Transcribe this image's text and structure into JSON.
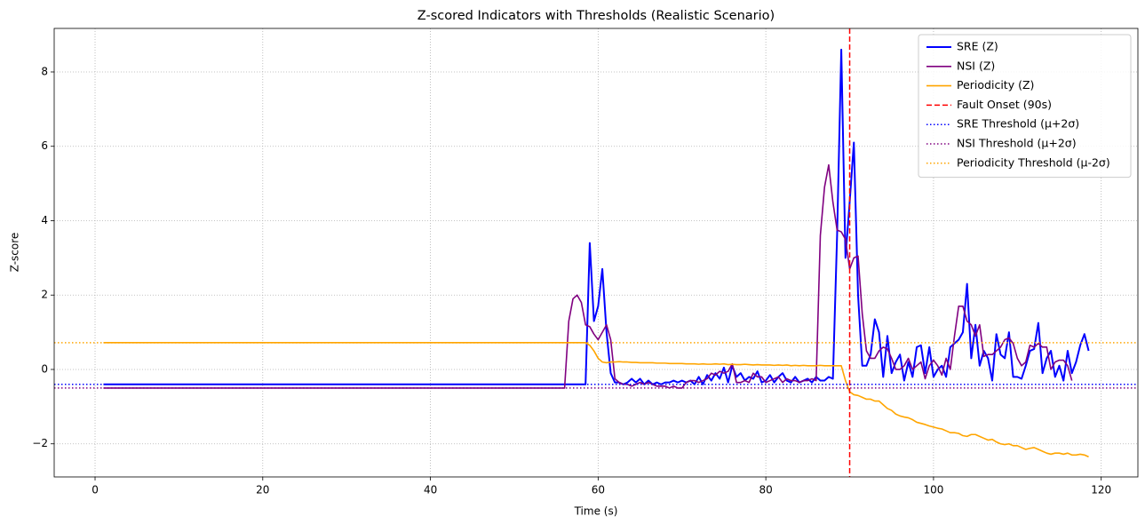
{
  "chart_data": {
    "type": "line",
    "title": "Z-scored Indicators with Thresholds (Realistic Scenario)",
    "x_label": "Time (s)",
    "y_label": "Z-score",
    "x": [
      1,
      56,
      56.5,
      57,
      57.5,
      58,
      58.5,
      59,
      59.5,
      60,
      60.5,
      61,
      61.5,
      62,
      62.5,
      63,
      63.5,
      64,
      64.5,
      65,
      65.5,
      66,
      66.5,
      67,
      67.5,
      68,
      68.5,
      69,
      69.5,
      70,
      70.5,
      71,
      71.5,
      72,
      72.5,
      73,
      73.5,
      74,
      74.5,
      75,
      75.5,
      76,
      76.5,
      77,
      77.5,
      78,
      78.5,
      79,
      79.5,
      80,
      80.5,
      81,
      81.5,
      82,
      82.5,
      83,
      83.5,
      84,
      84.5,
      85,
      85.5,
      86,
      86.5,
      87,
      87.5,
      88,
      88.5,
      89,
      89.5,
      90,
      90.5,
      91,
      91.5,
      92,
      92.5,
      93,
      93.5,
      94,
      94.5,
      95,
      95.5,
      96,
      96.5,
      97,
      97.5,
      98,
      98.5,
      99,
      99.5,
      100,
      100.5,
      101,
      101.5,
      102,
      102.5,
      103,
      103.5,
      104,
      104.5,
      105,
      105.5,
      106,
      106.5,
      107,
      107.5,
      108,
      108.5,
      109,
      109.5,
      110,
      110.5,
      111,
      111.5,
      112,
      112.5,
      113,
      113.5,
      114,
      114.5,
      115,
      115.5,
      116,
      116.5,
      117,
      117.5,
      118,
      118.5
    ],
    "series": [
      {
        "name": "SRE (Z)",
        "color": "#0000ff",
        "width": 2,
        "values": [
          -0.4,
          -0.4,
          -0.4,
          -0.4,
          -0.4,
          -0.4,
          -0.4,
          3.4,
          1.3,
          1.7,
          2.7,
          1.0,
          -0.1,
          -0.35,
          -0.35,
          -0.4,
          -0.35,
          -0.25,
          -0.35,
          -0.25,
          -0.4,
          -0.3,
          -0.4,
          -0.35,
          -0.4,
          -0.35,
          -0.35,
          -0.3,
          -0.35,
          -0.3,
          -0.35,
          -0.3,
          -0.4,
          -0.2,
          -0.4,
          -0.15,
          -0.3,
          -0.1,
          -0.25,
          0.05,
          -0.35,
          0.1,
          -0.2,
          -0.1,
          -0.3,
          -0.2,
          -0.25,
          -0.05,
          -0.35,
          -0.3,
          -0.15,
          -0.35,
          -0.2,
          -0.1,
          -0.3,
          -0.35,
          -0.2,
          -0.35,
          -0.3,
          -0.25,
          -0.35,
          -0.2,
          -0.3,
          -0.3,
          -0.2,
          -0.25,
          3.6,
          8.6,
          3.0,
          4.5,
          6.1,
          2.0,
          0.1,
          0.1,
          0.4,
          1.35,
          1.0,
          -0.2,
          0.9,
          -0.1,
          0.2,
          0.4,
          -0.3,
          0.2,
          -0.2,
          0.6,
          0.65,
          -0.1,
          0.6,
          -0.2,
          0,
          0.1,
          -0.2,
          0.6,
          0.7,
          0.8,
          1.0,
          2.3,
          0.3,
          1.2,
          0.1,
          0.5,
          0.3,
          -0.3,
          0.95,
          0.4,
          0.3,
          1.0,
          -0.2,
          -0.2,
          -0.25,
          0.1,
          0.5,
          0.55,
          1.25,
          -0.1,
          0.3,
          0.5,
          -0.2,
          0.1,
          -0.3,
          0.5,
          -0.1,
          0.2,
          0.65,
          0.95,
          0.5
        ]
      },
      {
        "name": "NSI (Z)",
        "color": "#800080",
        "width": 1.6,
        "values": [
          -0.5,
          -0.5,
          1.3,
          1.9,
          2.0,
          1.8,
          1.2,
          1.15,
          0.95,
          0.8,
          1.0,
          1.2,
          0.8,
          -0.25,
          -0.35,
          -0.4,
          -0.4,
          -0.45,
          -0.4,
          -0.35,
          -0.4,
          -0.35,
          -0.4,
          -0.45,
          -0.45,
          -0.45,
          -0.5,
          -0.45,
          -0.5,
          -0.5,
          -0.35,
          -0.3,
          -0.3,
          -0.35,
          -0.3,
          -0.25,
          -0.1,
          -0.15,
          -0.05,
          -0.1,
          -0.05,
          0.15,
          -0.35,
          -0.35,
          -0.3,
          -0.35,
          -0.1,
          -0.2,
          -0.2,
          -0.35,
          -0.3,
          -0.25,
          -0.2,
          -0.35,
          -0.25,
          -0.3,
          -0.3,
          -0.35,
          -0.3,
          -0.3,
          -0.25,
          -0.3,
          3.6,
          4.9,
          5.5,
          4.5,
          3.75,
          3.7,
          3.5,
          2.7,
          3.0,
          3.05,
          1.5,
          0.5,
          0.3,
          0.3,
          0.5,
          0.6,
          0.55,
          0.3,
          0,
          0,
          0.1,
          0.3,
          0,
          0.1,
          0.2,
          -0.25,
          0.1,
          0.25,
          0.1,
          -0.15,
          0.3,
          0,
          0.9,
          1.7,
          1.7,
          1.3,
          1.2,
          0.9,
          1.2,
          0.35,
          0.4,
          0.4,
          0.5,
          0.6,
          0.8,
          0.85,
          0.7,
          0.3,
          0.1,
          0.2,
          0.65,
          0.6,
          0.7,
          0.6,
          0.6,
          0,
          0.2,
          0.25,
          0.25,
          0.1,
          -0.3,
          null,
          null,
          null,
          null
        ]
      },
      {
        "name": "Periodicity (Z)",
        "color": "#ffa500",
        "width": 1.6,
        "values": [
          0.72,
          0.72,
          0.72,
          0.72,
          0.72,
          0.72,
          0.72,
          0.65,
          0.5,
          0.3,
          0.2,
          0.18,
          0.2,
          0.2,
          0.21,
          0.2,
          0.2,
          0.19,
          0.19,
          0.18,
          0.18,
          0.18,
          0.18,
          0.17,
          0.17,
          0.17,
          0.16,
          0.16,
          0.16,
          0.16,
          0.15,
          0.15,
          0.15,
          0.14,
          0.15,
          0.14,
          0.14,
          0.15,
          0.14,
          0.15,
          0.13,
          0.14,
          0.13,
          0.13,
          0.14,
          0.13,
          0.12,
          0.13,
          0.12,
          0.12,
          0.12,
          0.11,
          0.12,
          0.11,
          0.12,
          0.1,
          0.11,
          0.1,
          0.11,
          0.1,
          0.1,
          0.1,
          0.11,
          0.1,
          0.1,
          0.1,
          0.1,
          0.1,
          -0.3,
          -0.6,
          -0.68,
          -0.7,
          -0.75,
          -0.8,
          -0.8,
          -0.85,
          -0.85,
          -0.95,
          -1.05,
          -1.1,
          -1.2,
          -1.25,
          -1.28,
          -1.3,
          -1.35,
          -1.42,
          -1.45,
          -1.48,
          -1.52,
          -1.55,
          -1.58,
          -1.6,
          -1.65,
          -1.7,
          -1.7,
          -1.72,
          -1.78,
          -1.8,
          -1.75,
          -1.75,
          -1.8,
          -1.85,
          -1.9,
          -1.88,
          -1.95,
          -2.0,
          -2.02,
          -2.0,
          -2.05,
          -2.05,
          -2.1,
          -2.15,
          -2.12,
          -2.1,
          -2.15,
          -2.2,
          -2.25,
          -2.28,
          -2.25,
          -2.25,
          -2.28,
          -2.25,
          -2.3,
          -2.3,
          -2.28,
          -2.3,
          -2.35
        ]
      }
    ],
    "vlines": [
      {
        "name": "Fault Onset (90s)",
        "value": 90,
        "color": "#ff0000",
        "style": "dashed"
      }
    ],
    "hlines": [
      {
        "name": "SRE Threshold (μ+2σ)",
        "value": -0.4,
        "color": "#0000ff",
        "style": "dotted"
      },
      {
        "name": "NSI Threshold (μ+2σ)",
        "value": -0.5,
        "color": "#800080",
        "style": "dotted"
      },
      {
        "name": "Periodicity Threshold (μ-2σ)",
        "value": 0.72,
        "color": "#ffa500",
        "style": "dotted"
      }
    ],
    "xlim": [
      -4.875,
      124.375
    ],
    "ylim": [
      -2.89,
      9.17
    ],
    "xticks": [
      0,
      20,
      40,
      60,
      80,
      100,
      120
    ],
    "yticks": [
      {
        "value": -2,
        "label": "−2"
      },
      0,
      2,
      4,
      6,
      8
    ],
    "grid": true,
    "legend": "upper right"
  }
}
